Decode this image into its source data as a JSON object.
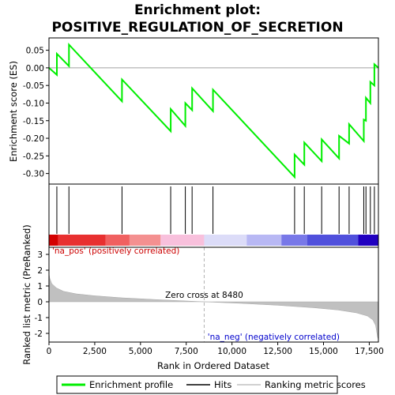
{
  "title": "Enrichment plot:",
  "subtitle": "POSITIVE_REGULATION_OF_SECRETION",
  "chart_data": [
    {
      "type": "line",
      "name": "enrichment-score-panel",
      "ylabel": "Enrichment score (ES)",
      "xlim": [
        0,
        18000
      ],
      "ylim": [
        -0.33,
        0.085
      ],
      "yticks": [
        0.05,
        0.0,
        -0.05,
        -0.1,
        -0.15,
        -0.2,
        -0.25,
        -0.3
      ],
      "ytick_labels": [
        "0.05",
        "0.00",
        "-0.05",
        "-0.10",
        "-0.15",
        "-0.20",
        "-0.25",
        "-0.30"
      ],
      "series": [
        {
          "name": "Enrichment profile",
          "color": "#00ee00",
          "x": [
            0,
            430,
            430,
            1090,
            1090,
            3990,
            3990,
            6650,
            6650,
            7450,
            7450,
            7820,
            7820,
            8960,
            8960,
            13420,
            13420,
            13950,
            13950,
            14900,
            14900,
            15850,
            15850,
            16400,
            16400,
            17200,
            17200,
            17320,
            17320,
            17560,
            17560,
            17780,
            17780,
            18000
          ],
          "y": [
            0.0,
            -0.02,
            0.04,
            0.005,
            0.066,
            -0.095,
            -0.033,
            -0.18,
            -0.117,
            -0.165,
            -0.1,
            -0.12,
            -0.058,
            -0.123,
            -0.062,
            -0.31,
            -0.246,
            -0.275,
            -0.212,
            -0.265,
            -0.203,
            -0.257,
            -0.193,
            -0.215,
            -0.16,
            -0.208,
            -0.147,
            -0.15,
            -0.085,
            -0.1,
            -0.04,
            -0.05,
            0.01,
            0.0
          ]
        }
      ],
      "zero_line": 0.0
    },
    {
      "type": "scatter",
      "name": "hits-panel",
      "legend_label": "Hits",
      "hits": [
        430,
        1090,
        3990,
        6650,
        7450,
        7820,
        8960,
        13420,
        13950,
        14900,
        15850,
        16400,
        17200,
        17320,
        17560,
        17780
      ],
      "color_bar": [
        {
          "x0": 0,
          "x1": 500,
          "color": "#d40000"
        },
        {
          "x0": 500,
          "x1": 3100,
          "color": "#e83030"
        },
        {
          "x0": 3100,
          "x1": 4400,
          "color": "#f06060"
        },
        {
          "x0": 4400,
          "x1": 6100,
          "color": "#f49090"
        },
        {
          "x0": 6100,
          "x1": 8480,
          "color": "#f8c0dc"
        },
        {
          "x0": 8480,
          "x1": 10800,
          "color": "#dcdcf8"
        },
        {
          "x0": 10800,
          "x1": 12700,
          "color": "#b8b8f4"
        },
        {
          "x0": 12700,
          "x1": 14100,
          "color": "#7878e8"
        },
        {
          "x0": 14100,
          "x1": 16900,
          "color": "#5050dc"
        },
        {
          "x0": 16900,
          "x1": 18000,
          "color": "#2000c0"
        }
      ]
    },
    {
      "type": "area",
      "name": "ranked-metric-panel",
      "xlabel": "Rank in Ordered Dataset",
      "ylabel": "Ranked list metric (PreRanked)",
      "xlim": [
        0,
        18000
      ],
      "ylim": [
        -2.55,
        3.45
      ],
      "yticks": [
        3,
        2,
        1,
        0,
        -1,
        -2
      ],
      "ytick_labels": [
        "3",
        "2",
        "1",
        "0",
        "-1",
        "-2"
      ],
      "xticks": [
        0,
        2500,
        5000,
        7500,
        10000,
        12500,
        15000,
        17500
      ],
      "xtick_labels": [
        "0",
        "2,500",
        "5,000",
        "7,500",
        "10,000",
        "12,500",
        "15,000",
        "17,500"
      ],
      "series": [
        {
          "name": "Ranking metric scores",
          "color": "#c0c0c0",
          "x": [
            0,
            40,
            150,
            400,
            800,
            1500,
            2500,
            4000,
            6000,
            8480,
            10500,
            12500,
            14500,
            15800,
            16800,
            17400,
            17700,
            17850,
            17950,
            18000
          ],
          "y": [
            1.8,
            1.5,
            1.15,
            0.88,
            0.66,
            0.5,
            0.38,
            0.25,
            0.13,
            0.0,
            -0.1,
            -0.22,
            -0.38,
            -0.52,
            -0.7,
            -0.9,
            -1.15,
            -1.5,
            -2.2,
            -2.4
          ]
        }
      ],
      "zero_cross_label": "Zero cross at 8480",
      "zero_cross_x": 8480,
      "pos_label": "'na_pos' (positively correlated)",
      "neg_label": "'na_neg' (negatively correlated)"
    }
  ],
  "legend": {
    "items": [
      {
        "label": "Enrichment profile",
        "color": "#00ee00",
        "kind": "thick-line"
      },
      {
        "label": "Hits",
        "color": "#000000",
        "kind": "line"
      },
      {
        "label": "Ranking metric scores",
        "color": "#c0c0c0",
        "kind": "line"
      }
    ]
  }
}
